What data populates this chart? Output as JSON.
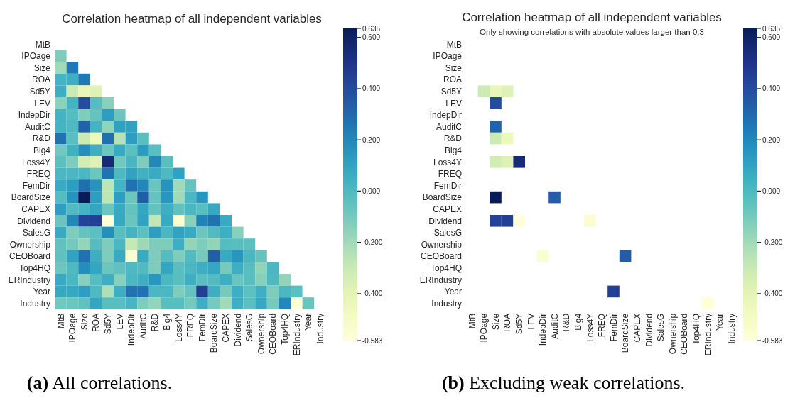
{
  "chart_data": [
    {
      "type": "heatmap",
      "title": "Correlation heatmap of all independent variables",
      "annotations": [
        "(a) All correlations."
      ],
      "categories": [
        "MtB",
        "IPOage",
        "Size",
        "ROA",
        "Sd5Y",
        "LEV",
        "IndepDir",
        "AuditC",
        "R&D",
        "Big4",
        "Loss4Y",
        "FREQ",
        "FemDir",
        "BoardSize",
        "CAPEX",
        "Dividend",
        "SalesG",
        "Ownership",
        "CEOBoard",
        "Top4HQ",
        "ERIndustry",
        "Year",
        "Industry"
      ],
      "y_categories": [
        "MtB",
        "IPOage",
        "Size",
        "ROA",
        "Sd5Y",
        "LEV",
        "IndepDir",
        "AuditC",
        "R&D",
        "Big4",
        "Loss4Y",
        "FREQ",
        "FemDir",
        "BoardSize",
        "CAPEX",
        "Dividend",
        "SalesG",
        "Ownership",
        "CEOBoard",
        "Top4HQ",
        "ERIndustry",
        "Year",
        "Industry"
      ],
      "clim": [
        -0.583,
        0.635
      ],
      "cticks": [
        {
          "value": 0.635,
          "label": "0.635"
        },
        {
          "value": 0.6,
          "label": "0.600"
        },
        {
          "value": 0.4,
          "label": "0.400"
        },
        {
          "value": 0.2,
          "label": "0.200"
        },
        {
          "value": 0,
          "label": "0.000"
        },
        {
          "value": -0.2,
          "label": "-0.200"
        },
        {
          "value": -0.4,
          "label": "-0.400"
        },
        {
          "value": -0.583,
          "label": "-0.583"
        }
      ],
      "cells": [
        [
          null,
          null,
          null,
          null,
          null,
          null,
          null,
          null,
          null,
          null,
          null,
          null,
          null,
          null,
          null,
          null,
          null,
          null,
          null,
          null,
          null,
          null,
          null
        ],
        [
          -0.12,
          null,
          null,
          null,
          null,
          null,
          null,
          null,
          null,
          null,
          null,
          null,
          null,
          null,
          null,
          null,
          null,
          null,
          null,
          null,
          null,
          null,
          null
        ],
        [
          -0.2,
          0.25,
          null,
          null,
          null,
          null,
          null,
          null,
          null,
          null,
          null,
          null,
          null,
          null,
          null,
          null,
          null,
          null,
          null,
          null,
          null,
          null,
          null
        ],
        [
          0.03,
          0.05,
          0.25,
          null,
          null,
          null,
          null,
          null,
          null,
          null,
          null,
          null,
          null,
          null,
          null,
          null,
          null,
          null,
          null,
          null,
          null,
          null,
          null
        ],
        [
          0.05,
          -0.31,
          -0.42,
          -0.37,
          null,
          null,
          null,
          null,
          null,
          null,
          null,
          null,
          null,
          null,
          null,
          null,
          null,
          null,
          null,
          null,
          null,
          null,
          null
        ],
        [
          -0.15,
          0.03,
          0.4,
          -0.02,
          -0.14,
          null,
          null,
          null,
          null,
          null,
          null,
          null,
          null,
          null,
          null,
          null,
          null,
          null,
          null,
          null,
          null,
          null,
          null
        ],
        [
          0.03,
          -0.02,
          -0.12,
          -0.06,
          0.12,
          -0.07,
          null,
          null,
          null,
          null,
          null,
          null,
          null,
          null,
          null,
          null,
          null,
          null,
          null,
          null,
          null,
          null,
          null
        ],
        [
          0.03,
          0,
          0.32,
          0.03,
          -0.16,
          0.11,
          0.1,
          null,
          null,
          null,
          null,
          null,
          null,
          null,
          null,
          null,
          null,
          null,
          null,
          null,
          null,
          null,
          null
        ],
        [
          0.27,
          -0.03,
          -0.31,
          -0.45,
          0.28,
          -0.25,
          0.12,
          -0.03,
          null,
          null,
          null,
          null,
          null,
          null,
          null,
          null,
          null,
          null,
          null,
          null,
          null,
          null,
          null
        ],
        [
          -0.09,
          0.04,
          0.18,
          0.05,
          -0.08,
          0.07,
          -0.04,
          0.13,
          -0.03,
          null,
          null,
          null,
          null,
          null,
          null,
          null,
          null,
          null,
          null,
          null,
          null,
          null,
          null
        ],
        [
          -0.04,
          -0.12,
          -0.33,
          -0.37,
          0.55,
          -0.09,
          0.02,
          -0.12,
          0.2,
          -0.03,
          null,
          null,
          null,
          null,
          null,
          null,
          null,
          null,
          null,
          null,
          null,
          null,
          null
        ],
        [
          0.01,
          0.01,
          0.01,
          -0.08,
          0.27,
          0,
          0.1,
          0.04,
          0.07,
          0,
          0.11,
          null,
          null,
          null,
          null,
          null,
          null,
          null,
          null,
          null,
          null,
          null,
          null
        ],
        [
          0.07,
          0.12,
          0.28,
          0.16,
          -0.27,
          0.03,
          0.27,
          0.2,
          -0.07,
          0.16,
          -0.2,
          -0.06,
          null,
          null,
          null,
          null,
          null,
          null,
          null,
          null,
          null,
          null,
          null
        ],
        [
          -0.02,
          0.16,
          0.635,
          0.12,
          -0.27,
          0.12,
          -0.08,
          0.34,
          -0.06,
          0.15,
          -0.2,
          0.01,
          0.15,
          null,
          null,
          null,
          null,
          null,
          null,
          null,
          null,
          null,
          null
        ],
        [
          0.12,
          -0.01,
          0.03,
          0.09,
          -0.08,
          0.07,
          -0.06,
          0.09,
          -0.06,
          0.05,
          -0.05,
          0.01,
          -0.03,
          0.08,
          null,
          null,
          null,
          null,
          null,
          null,
          null,
          null,
          null
        ],
        [
          -0.07,
          0.2,
          0.43,
          0.45,
          -0.583,
          0.08,
          -0.07,
          0.1,
          -0.28,
          0.07,
          -0.55,
          -0.14,
          0.22,
          0.27,
          0.07,
          null,
          null,
          null,
          null,
          null,
          null,
          null,
          null
        ],
        [
          0.07,
          -0.12,
          -0.06,
          -0.04,
          0.18,
          -0.03,
          0.03,
          -0.04,
          0.12,
          0.01,
          0.1,
          0.07,
          -0.08,
          -0.01,
          0.05,
          -0.14,
          null,
          null,
          null,
          null,
          null,
          null,
          null
        ],
        [
          -0.05,
          -0.1,
          -0.17,
          -0.02,
          -0.12,
          0.01,
          -0.29,
          -0.19,
          -0.12,
          -0.12,
          0.05,
          -0.17,
          -0.12,
          -0.16,
          -0.02,
          -0.03,
          -0.04,
          null,
          null,
          null,
          null,
          null,
          null
        ],
        [
          -0.05,
          0.1,
          0.27,
          0.05,
          -0.12,
          0.07,
          -0.55,
          0.07,
          -0.12,
          -0.02,
          -0.12,
          -0.01,
          -0.1,
          0.34,
          0.07,
          0.15,
          0.01,
          -0.06,
          null,
          null,
          null,
          null,
          null
        ],
        [
          -0.08,
          0,
          0.18,
          0.09,
          -0.08,
          -0.05,
          0,
          -0.01,
          -0.12,
          0.09,
          -0.03,
          0.01,
          0.05,
          0.09,
          -0.1,
          0.05,
          -0.03,
          -0.16,
          0.01,
          null,
          null,
          null,
          null
        ],
        [
          0.07,
          0.01,
          -0.14,
          -0.02,
          0.05,
          -0.14,
          0.01,
          0.05,
          0.15,
          0.01,
          -0.03,
          0.05,
          -0.03,
          -0.01,
          0.05,
          -0.07,
          -0.03,
          -0.14,
          0,
          -0.16,
          null,
          null,
          null
        ],
        [
          0.08,
          0.08,
          0.12,
          0,
          -0.23,
          0.05,
          0.27,
          0.27,
          0.01,
          0.01,
          -0.12,
          -0.06,
          0.45,
          0.05,
          -0.1,
          0.05,
          -0.04,
          0.05,
          -0.12,
          0.01,
          -0.04,
          null,
          null
        ],
        [
          -0.09,
          -0.08,
          -0.05,
          0.09,
          -0.03,
          -0.03,
          0.02,
          -0.12,
          -0.17,
          -0.03,
          -0.03,
          -0.1,
          0.05,
          -0.1,
          -0.2,
          0.05,
          -0.04,
          0.08,
          -0.1,
          0.2,
          -0.58,
          -0.07,
          null
        ]
      ]
    },
    {
      "type": "heatmap",
      "title": "Correlation heatmap of all independent variables",
      "subtitle": "Only showing correlations with absolute values larger than 0.3",
      "annotations": [
        "(b) Excluding weak correlations."
      ],
      "categories": [
        "MtB",
        "IPOage",
        "Size",
        "ROA",
        "Sd5Y",
        "LEV",
        "IndepDir",
        "AuditC",
        "R&D",
        "Big4",
        "Loss4Y",
        "FREQ",
        "FemDir",
        "BoardSize",
        "CAPEX",
        "Dividend",
        "SalesG",
        "Ownership",
        "CEOBoard",
        "Top4HQ",
        "ERIndustry",
        "Year",
        "Industry"
      ],
      "y_categories": [
        "MtB",
        "IPOage",
        "Size",
        "ROA",
        "Sd5Y",
        "LEV",
        "IndepDir",
        "AuditC",
        "R&D",
        "Big4",
        "Loss4Y",
        "FREQ",
        "FemDir",
        "BoardSize",
        "CAPEX",
        "Dividend",
        "SalesG",
        "Ownership",
        "CEOBoard",
        "Top4HQ",
        "ERIndustry",
        "Year",
        "Industry"
      ],
      "clim": [
        -0.583,
        0.635
      ],
      "cticks": [
        {
          "value": 0.635,
          "label": "0.635"
        },
        {
          "value": 0.6,
          "label": "0.600"
        },
        {
          "value": 0.4,
          "label": "0.400"
        },
        {
          "value": 0.2,
          "label": "0.200"
        },
        {
          "value": 0,
          "label": "0.000"
        },
        {
          "value": -0.2,
          "label": "-0.200"
        },
        {
          "value": -0.4,
          "label": "-0.400"
        },
        {
          "value": -0.583,
          "label": "-0.583"
        }
      ],
      "cells": [
        [
          null,
          null,
          null,
          null,
          null,
          null,
          null,
          null,
          null,
          null,
          null,
          null,
          null,
          null,
          null,
          null,
          null,
          null,
          null,
          null,
          null,
          null,
          null
        ],
        [
          null,
          null,
          null,
          null,
          null,
          null,
          null,
          null,
          null,
          null,
          null,
          null,
          null,
          null,
          null,
          null,
          null,
          null,
          null,
          null,
          null,
          null,
          null
        ],
        [
          null,
          null,
          null,
          null,
          null,
          null,
          null,
          null,
          null,
          null,
          null,
          null,
          null,
          null,
          null,
          null,
          null,
          null,
          null,
          null,
          null,
          null,
          null
        ],
        [
          null,
          null,
          null,
          null,
          null,
          null,
          null,
          null,
          null,
          null,
          null,
          null,
          null,
          null,
          null,
          null,
          null,
          null,
          null,
          null,
          null,
          null,
          null
        ],
        [
          null,
          -0.31,
          -0.42,
          -0.37,
          null,
          null,
          null,
          null,
          null,
          null,
          null,
          null,
          null,
          null,
          null,
          null,
          null,
          null,
          null,
          null,
          null,
          null,
          null
        ],
        [
          null,
          null,
          0.4,
          null,
          null,
          null,
          null,
          null,
          null,
          null,
          null,
          null,
          null,
          null,
          null,
          null,
          null,
          null,
          null,
          null,
          null,
          null,
          null
        ],
        [
          null,
          null,
          null,
          null,
          null,
          null,
          null,
          null,
          null,
          null,
          null,
          null,
          null,
          null,
          null,
          null,
          null,
          null,
          null,
          null,
          null,
          null,
          null
        ],
        [
          null,
          null,
          0.32,
          null,
          null,
          null,
          null,
          null,
          null,
          null,
          null,
          null,
          null,
          null,
          null,
          null,
          null,
          null,
          null,
          null,
          null,
          null,
          null
        ],
        [
          null,
          null,
          -0.31,
          -0.45,
          null,
          null,
          null,
          null,
          null,
          null,
          null,
          null,
          null,
          null,
          null,
          null,
          null,
          null,
          null,
          null,
          null,
          null,
          null
        ],
        [
          null,
          null,
          null,
          null,
          null,
          null,
          null,
          null,
          null,
          null,
          null,
          null,
          null,
          null,
          null,
          null,
          null,
          null,
          null,
          null,
          null,
          null,
          null
        ],
        [
          null,
          null,
          -0.33,
          -0.37,
          0.55,
          null,
          null,
          null,
          null,
          null,
          null,
          null,
          null,
          null,
          null,
          null,
          null,
          null,
          null,
          null,
          null,
          null,
          null
        ],
        [
          null,
          null,
          null,
          null,
          null,
          null,
          null,
          null,
          null,
          null,
          null,
          null,
          null,
          null,
          null,
          null,
          null,
          null,
          null,
          null,
          null,
          null,
          null
        ],
        [
          null,
          null,
          null,
          null,
          null,
          null,
          null,
          null,
          null,
          null,
          null,
          null,
          null,
          null,
          null,
          null,
          null,
          null,
          null,
          null,
          null,
          null,
          null
        ],
        [
          null,
          null,
          0.635,
          null,
          null,
          null,
          null,
          0.34,
          null,
          null,
          null,
          null,
          null,
          null,
          null,
          null,
          null,
          null,
          null,
          null,
          null,
          null,
          null
        ],
        [
          null,
          null,
          null,
          null,
          null,
          null,
          null,
          null,
          null,
          null,
          null,
          null,
          null,
          null,
          null,
          null,
          null,
          null,
          null,
          null,
          null,
          null,
          null
        ],
        [
          null,
          null,
          0.43,
          0.45,
          -0.583,
          null,
          null,
          null,
          null,
          null,
          -0.55,
          null,
          null,
          null,
          null,
          null,
          null,
          null,
          null,
          null,
          null,
          null,
          null
        ],
        [
          null,
          null,
          null,
          null,
          null,
          null,
          null,
          null,
          null,
          null,
          null,
          null,
          null,
          null,
          null,
          null,
          null,
          null,
          null,
          null,
          null,
          null,
          null
        ],
        [
          null,
          null,
          null,
          null,
          null,
          null,
          null,
          null,
          null,
          null,
          null,
          null,
          null,
          null,
          null,
          null,
          null,
          null,
          null,
          null,
          null,
          null,
          null
        ],
        [
          null,
          null,
          null,
          null,
          null,
          null,
          -0.55,
          null,
          null,
          null,
          null,
          null,
          null,
          0.34,
          null,
          null,
          null,
          null,
          null,
          null,
          null,
          null,
          null
        ],
        [
          null,
          null,
          null,
          null,
          null,
          null,
          null,
          null,
          null,
          null,
          null,
          null,
          null,
          null,
          null,
          null,
          null,
          null,
          null,
          null,
          null,
          null,
          null
        ],
        [
          null,
          null,
          null,
          null,
          null,
          null,
          null,
          null,
          null,
          null,
          null,
          null,
          null,
          null,
          null,
          null,
          null,
          null,
          null,
          null,
          null,
          null,
          null
        ],
        [
          null,
          null,
          null,
          null,
          null,
          null,
          null,
          null,
          null,
          null,
          null,
          null,
          0.45,
          null,
          null,
          null,
          null,
          null,
          null,
          null,
          null,
          null,
          null
        ],
        [
          null,
          null,
          null,
          null,
          null,
          null,
          null,
          null,
          null,
          null,
          null,
          null,
          null,
          null,
          null,
          null,
          null,
          null,
          null,
          null,
          -0.58,
          null,
          null
        ]
      ]
    }
  ]
}
